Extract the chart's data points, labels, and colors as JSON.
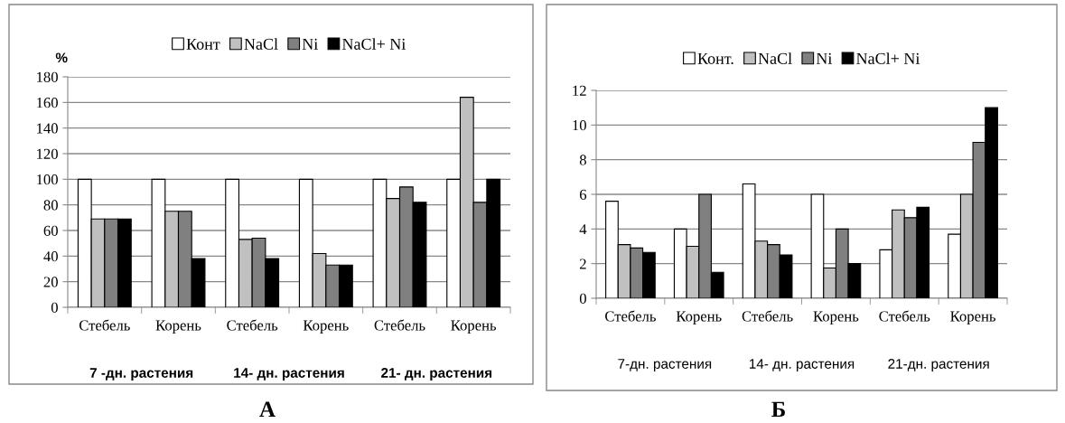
{
  "chart_data": [
    {
      "type": "bar",
      "title": "А",
      "ylabel": "%",
      "categories": [
        "Стебель",
        "Корень",
        "Стебель",
        "Корень",
        "Стебель",
        "Корень"
      ],
      "series": [
        {
          "name": "Конт",
          "color": "#ffffff",
          "values": [
            100,
            100,
            100,
            100,
            100,
            100
          ]
        },
        {
          "name": "NaCl",
          "color": "#c0c0c0",
          "values": [
            69,
            75,
            53,
            42,
            85,
            164
          ]
        },
        {
          "name": "Ni",
          "color": "#808080",
          "values": [
            69,
            75,
            54,
            33,
            94,
            82
          ]
        },
        {
          "name": "NaCl+ Ni",
          "color": "#000000",
          "values": [
            69,
            38,
            38,
            33,
            82,
            100
          ]
        }
      ],
      "ylim": [
        0,
        180
      ],
      "yticks": [
        0,
        20,
        40,
        60,
        80,
        100,
        120,
        140,
        160,
        180
      ],
      "grid": "y",
      "legend": "top",
      "annotations": [
        "7 -дн. растения",
        "14- дн. растения",
        "21- дн. растения"
      ]
    },
    {
      "type": "bar",
      "title": "Б",
      "categories": [
        "Стебель",
        "Корень",
        "Стебель",
        "Корень",
        "Стебель",
        "Корень"
      ],
      "series": [
        {
          "name": "Конт.",
          "color": "#ffffff",
          "values": [
            5.6,
            4.0,
            6.6,
            6.0,
            2.8,
            3.7
          ]
        },
        {
          "name": "NaCl",
          "color": "#c0c0c0",
          "values": [
            3.1,
            3.0,
            3.3,
            1.75,
            5.1,
            6.0
          ]
        },
        {
          "name": "Ni",
          "color": "#808080",
          "values": [
            2.9,
            6.0,
            3.1,
            4.0,
            4.65,
            9.0
          ]
        },
        {
          "name": "NaCl+ Ni",
          "color": "#000000",
          "values": [
            2.65,
            1.5,
            2.5,
            2.0,
            5.25,
            11.0
          ]
        }
      ],
      "ylim": [
        0,
        12
      ],
      "yticks": [
        0,
        2,
        4,
        6,
        8,
        10,
        12
      ],
      "grid": "y",
      "legend": "top",
      "annotations": [
        "7-дн. растения",
        "14- дн. растения",
        "21-дн. растения"
      ]
    }
  ]
}
